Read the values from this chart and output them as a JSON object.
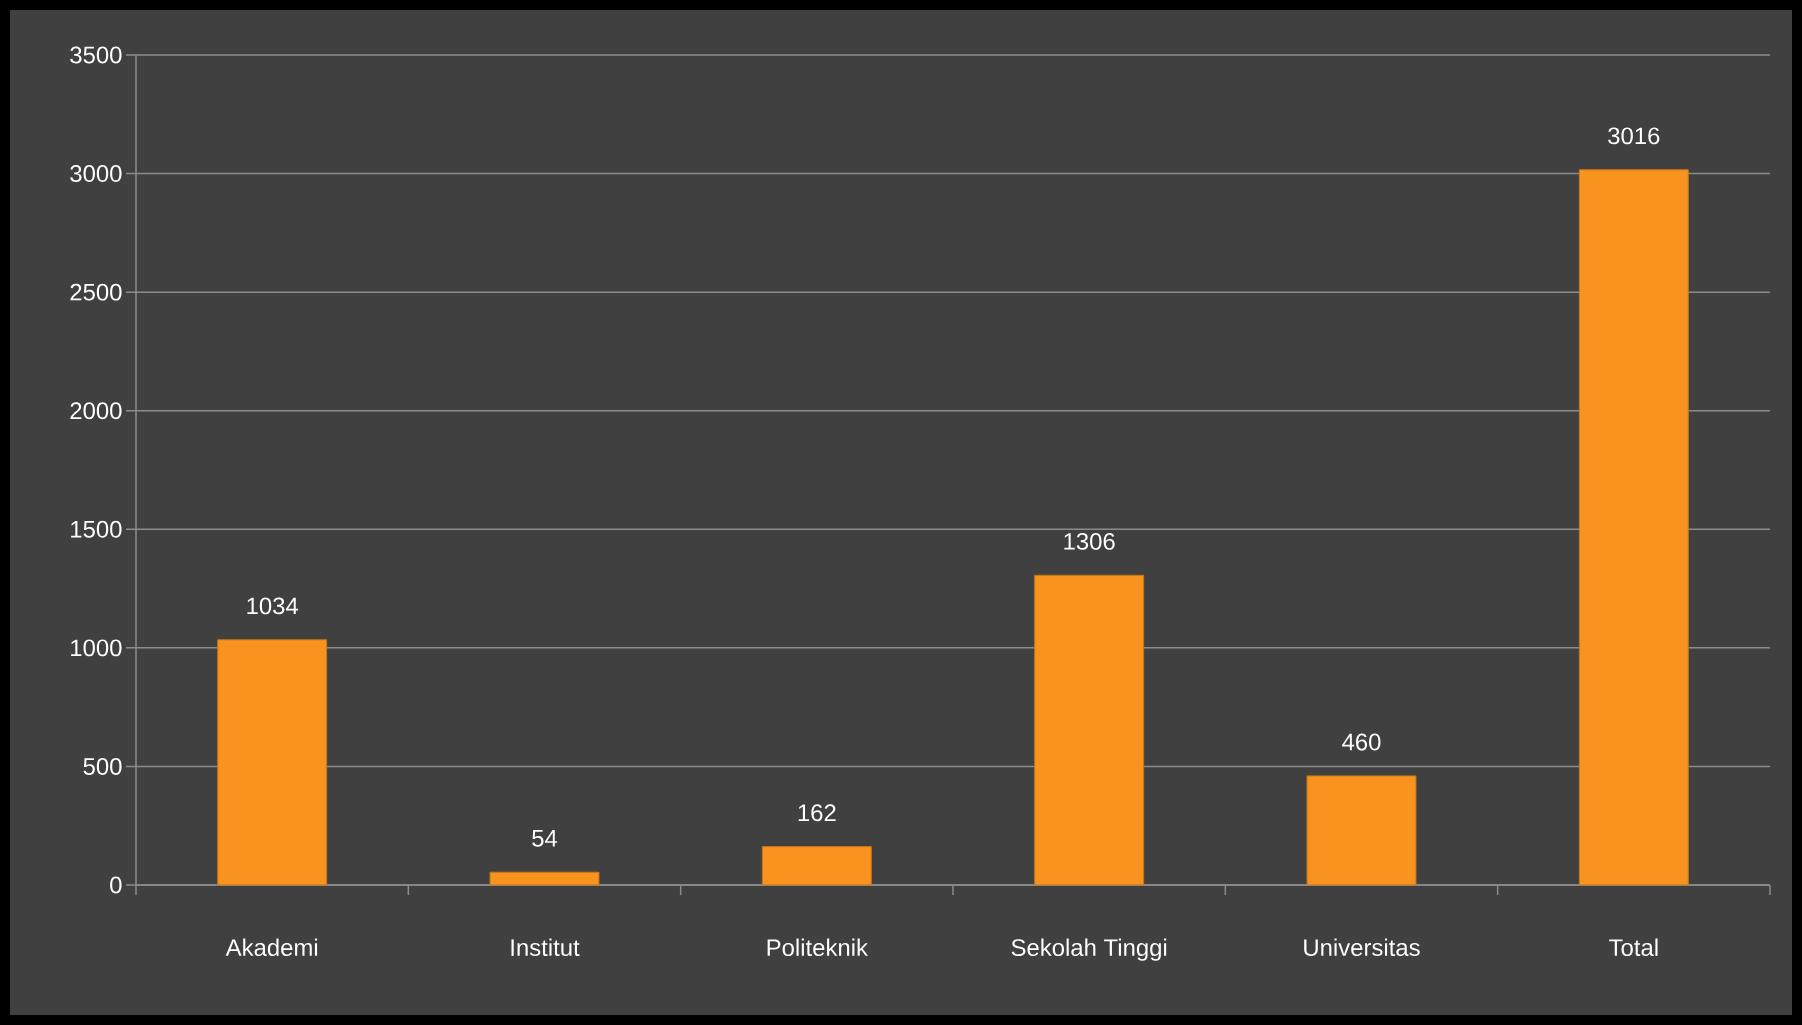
{
  "chart_data": {
    "type": "bar",
    "categories": [
      "Akademi",
      "Institut",
      "Politeknik",
      "Sekolah Tinggi",
      "Universitas",
      "Total"
    ],
    "values": [
      1034,
      54,
      162,
      1306,
      460,
      3016
    ],
    "color": "#f7931e",
    "ylim": [
      0,
      3500
    ],
    "yticks": [
      0,
      500,
      1000,
      1500,
      2000,
      2500,
      3000,
      3500
    ],
    "grid": "y",
    "data_labels": true
  }
}
